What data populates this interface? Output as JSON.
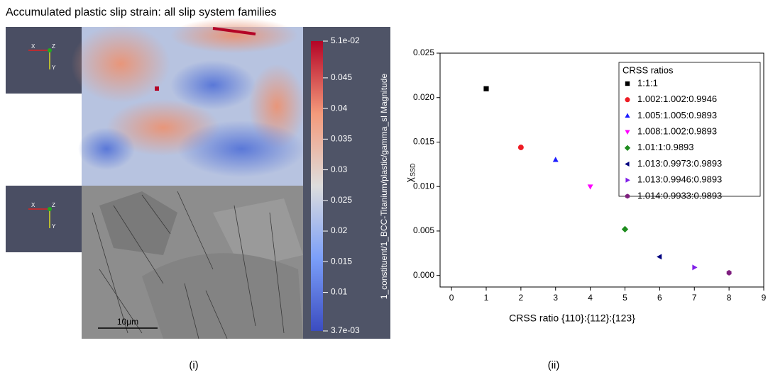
{
  "figure_i": {
    "title": "Accumulated plastic slip strain: all slip system families",
    "glyph_labels": [
      "X",
      "Z",
      "Y"
    ],
    "scale_bar": "10μm",
    "panel_label": "(i)",
    "colorbar": {
      "title": "1_constituent/1_BCC-Titanium/plastic/gamma_sl Magnitude",
      "lim": [
        0.0037,
        0.051
      ],
      "ticks": [
        {
          "value": 0.0037,
          "label": "3.7e-03"
        },
        0.01,
        0.015,
        0.02,
        0.025,
        0.03,
        0.035,
        0.04,
        0.045,
        {
          "value": 0.051,
          "label": "5.1e-02"
        }
      ]
    }
  },
  "chart_data": {
    "type": "scatter",
    "panel_label": "(ii)",
    "xlabel": "CRSS ratio {110}:{112}:{123}",
    "ylabel": {
      "main": "χ",
      "sub": "SSD"
    },
    "xlim": [
      -0.33,
      9
    ],
    "xticks": [
      0,
      1,
      2,
      3,
      4,
      5,
      6,
      7,
      8,
      9
    ],
    "ylim": [
      -0.0013,
      0.025
    ],
    "yticks": [
      {
        "value": 0,
        "label": "0.000"
      },
      {
        "value": 0.005,
        "label": "0.005"
      },
      {
        "value": 0.01,
        "label": "0.010"
      },
      {
        "value": 0.015,
        "label": "0.015"
      },
      {
        "value": 0.02,
        "label": "0.020"
      },
      {
        "value": 0.025,
        "label": "0.025"
      }
    ],
    "legend_title": "CRSS ratios",
    "legend_position": "upper right",
    "series": [
      {
        "name": "1:1:1",
        "color": "#000000",
        "marker": "square",
        "x": [
          1
        ],
        "values": [
          0.021
        ]
      },
      {
        "name": "1.002:1.002:0.9946",
        "color": "#ee1c24",
        "marker": "circle",
        "x": [
          2
        ],
        "values": [
          0.0144
        ]
      },
      {
        "name": "1.005:1.005:0.9893",
        "color": "#1c1cff",
        "marker": "triangle-up",
        "x": [
          3
        ],
        "values": [
          0.013
        ]
      },
      {
        "name": "1.008:1.002:0.9893",
        "color": "#ff00ff",
        "marker": "triangle-down",
        "x": [
          4
        ],
        "values": [
          0.01
        ]
      },
      {
        "name": "1.01:1:0.9893",
        "color": "#1e8c1e",
        "marker": "diamond",
        "x": [
          5
        ],
        "values": [
          0.0052
        ]
      },
      {
        "name": "1.013:0.9973:0.9893",
        "color": "#00007f",
        "marker": "triangle-left",
        "x": [
          6
        ],
        "values": [
          0.0021
        ]
      },
      {
        "name": "1.013:0.9946:0.9893",
        "color": "#7f1fe8",
        "marker": "triangle-right",
        "x": [
          7
        ],
        "values": [
          0.0009
        ]
      },
      {
        "name": "1.014:0.9933:0.9893",
        "color": "#7f1f7f",
        "marker": "hexagon",
        "x": [
          8
        ],
        "values": [
          0.0003
        ]
      }
    ]
  }
}
